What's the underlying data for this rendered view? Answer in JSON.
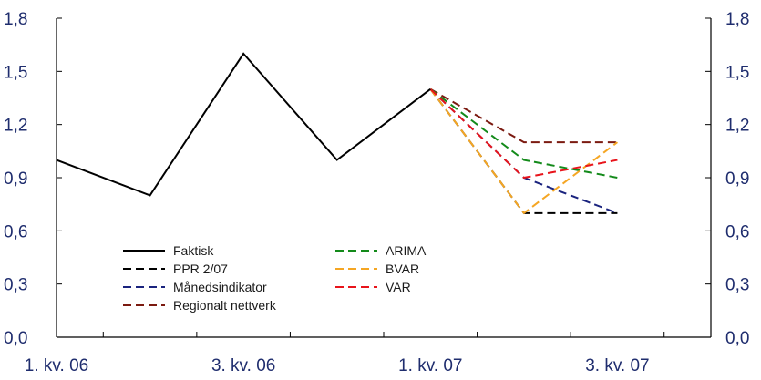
{
  "chart_data": {
    "type": "line",
    "title": "",
    "xlabel": "",
    "ylabel": "",
    "ylim": [
      0,
      1.8
    ],
    "y_ticks": [
      "0,0",
      "0,3",
      "0,6",
      "0,9",
      "1,2",
      "1,5",
      "1,8"
    ],
    "y_axis_both_sides": true,
    "x_tick_labels": [
      "1. kv. 06",
      "3. kv. 06",
      "1. kv. 07",
      "3. kv. 07"
    ],
    "periods": [
      "1. kv. 06",
      "2. kv. 06",
      "3. kv. 06",
      "4. kv. 06",
      "1. kv. 07",
      "2. kv. 07",
      "3. kv. 07"
    ],
    "grid": false,
    "legend_position": "bottom-left, inside plot",
    "series": [
      {
        "name": "Faktisk",
        "color": "#000000",
        "dash": "solid",
        "values": [
          1.0,
          0.8,
          1.6,
          1.0,
          1.4,
          null,
          null
        ]
      },
      {
        "name": "PPR 2/07",
        "color": "#000000",
        "dash": "dashed",
        "values": [
          null,
          null,
          null,
          null,
          1.4,
          0.7,
          0.7
        ]
      },
      {
        "name": "Månedsindikator",
        "color": "#1a237e",
        "dash": "dashed",
        "values": [
          null,
          null,
          null,
          null,
          1.4,
          0.9,
          0.7
        ]
      },
      {
        "name": "Regionalt nettverk",
        "color": "#7b1a10",
        "dash": "dashed",
        "values": [
          null,
          null,
          null,
          null,
          1.4,
          1.1,
          1.1
        ]
      },
      {
        "name": "ARIMA",
        "color": "#138a1a",
        "dash": "dashed",
        "values": [
          null,
          null,
          null,
          null,
          1.4,
          1.0,
          0.9
        ]
      },
      {
        "name": "BVAR",
        "color": "#f5a623",
        "dash": "dashed",
        "values": [
          null,
          null,
          null,
          null,
          1.4,
          0.7,
          1.1
        ]
      },
      {
        "name": "VAR",
        "color": "#e8141b",
        "dash": "dashed",
        "values": [
          null,
          null,
          null,
          null,
          1.4,
          0.9,
          1.0
        ]
      }
    ]
  }
}
